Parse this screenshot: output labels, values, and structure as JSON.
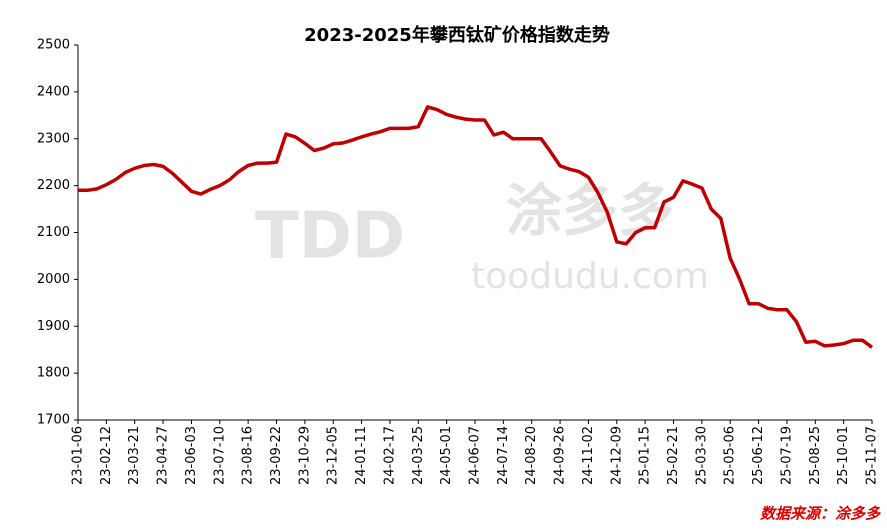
{
  "chart_data": {
    "type": "line",
    "title": "2023-2025年攀西钛矿价格指数走势",
    "watermark": [
      "TDD",
      "涂多多",
      "toodudu.com"
    ],
    "source": "数据来源：涂多多",
    "categories": [
      "23-01-06",
      null,
      null,
      "23-02-12",
      null,
      null,
      "23-03-21",
      null,
      null,
      "23-04-27",
      null,
      null,
      "23-06-03",
      null,
      null,
      "23-07-10",
      null,
      null,
      "23-08-16",
      null,
      null,
      "23-09-22",
      null,
      null,
      "23-10-29",
      null,
      null,
      "23-12-05",
      null,
      null,
      "24-01-11",
      null,
      null,
      "24-02-17",
      null,
      null,
      "24-03-25",
      null,
      null,
      "24-05-01",
      null,
      null,
      "24-06-07",
      null,
      null,
      "24-07-14",
      null,
      null,
      "24-08-20",
      null,
      null,
      "24-09-26",
      null,
      null,
      "24-11-02",
      null,
      null,
      "24-12-09",
      null,
      null,
      "25-01-15",
      null,
      null,
      "25-02-21",
      null,
      null,
      "25-03-30",
      null,
      null,
      "25-05-06",
      null,
      null,
      "25-06-12",
      null,
      null,
      "25-07-19",
      null,
      null,
      "25-08-25",
      null,
      null,
      "25-10-01",
      null,
      null,
      "25-11-07"
    ],
    "values": [
      2190,
      2190,
      2193,
      2202,
      2213,
      2228,
      2237,
      2243,
      2245,
      2241,
      2226,
      2207,
      2188,
      2182,
      2192,
      2200,
      2212,
      2230,
      2243,
      2248,
      2248,
      2250,
      2310,
      2304,
      2290,
      2275,
      2280,
      2289,
      2291,
      2297,
      2304,
      2310,
      2315,
      2322,
      2322,
      2322,
      2326,
      2368,
      2362,
      2352,
      2346,
      2342,
      2340,
      2340,
      2308,
      2314,
      2300,
      2300,
      2300,
      2300,
      2272,
      2242,
      2235,
      2230,
      2218,
      2185,
      2143,
      2080,
      2076,
      2100,
      2110,
      2110,
      2165,
      2175,
      2210,
      2203,
      2195,
      2150,
      2130,
      2045,
      2000,
      1948,
      1948,
      1938,
      1935,
      1935,
      1910,
      1866,
      1868,
      1858,
      1860,
      1863,
      1870,
      1870,
      1855
    ],
    "color": "#c00000",
    "ylim": [
      1700,
      2500
    ],
    "yticks": [
      1700,
      1800,
      1900,
      2000,
      2100,
      2200,
      2300,
      2400,
      2500
    ],
    "grid": false
  }
}
